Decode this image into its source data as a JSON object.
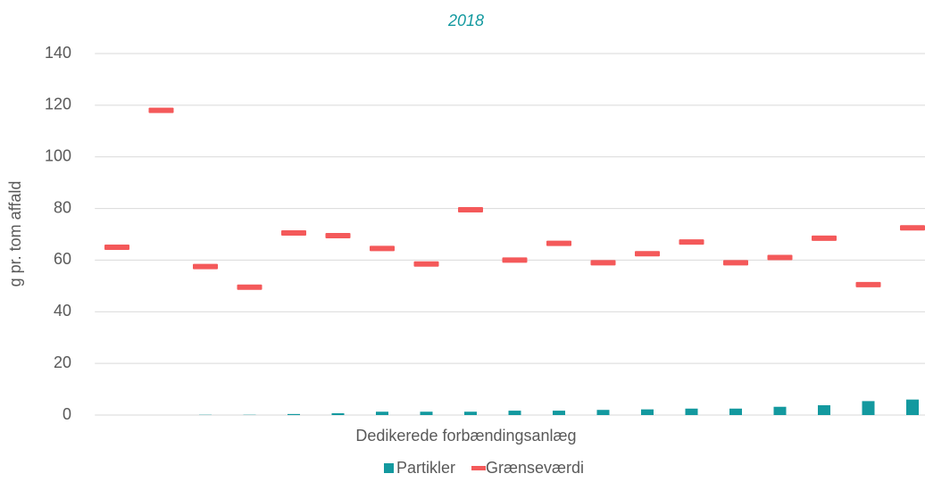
{
  "chart_data": {
    "type": "bar",
    "title": "2018",
    "x_label": "Dedikerede forbændingsanlæg",
    "y_label": "g pr. tom affald",
    "categories": [
      null,
      null,
      null,
      null,
      null,
      null,
      null,
      null,
      null,
      null,
      null,
      null,
      null,
      null,
      null,
      null,
      null,
      null,
      null
    ],
    "series": [
      {
        "name": "Partikler",
        "type": "bar",
        "color": "#13999f",
        "values": [
          0,
          0,
          0.1,
          0.1,
          0.4,
          0.7,
          1.3,
          1.3,
          1.3,
          1.7,
          1.7,
          2,
          2.2,
          2.5,
          2.5,
          3.2,
          3.8,
          5.4,
          6
        ]
      },
      {
        "name": "Grænseværdi",
        "type": "marker",
        "color": "#f4595a",
        "values": [
          65,
          118,
          57.5,
          49.5,
          70.5,
          69.5,
          64.5,
          58.5,
          79.5,
          60,
          66.5,
          59,
          62.5,
          67,
          59,
          61,
          68.5,
          50.5,
          72.5
        ]
      }
    ],
    "ylim": [
      0,
      140
    ],
    "yticks": [
      0,
      20,
      40,
      60,
      80,
      100,
      120,
      140
    ],
    "grid": true,
    "legend": "bottom"
  }
}
